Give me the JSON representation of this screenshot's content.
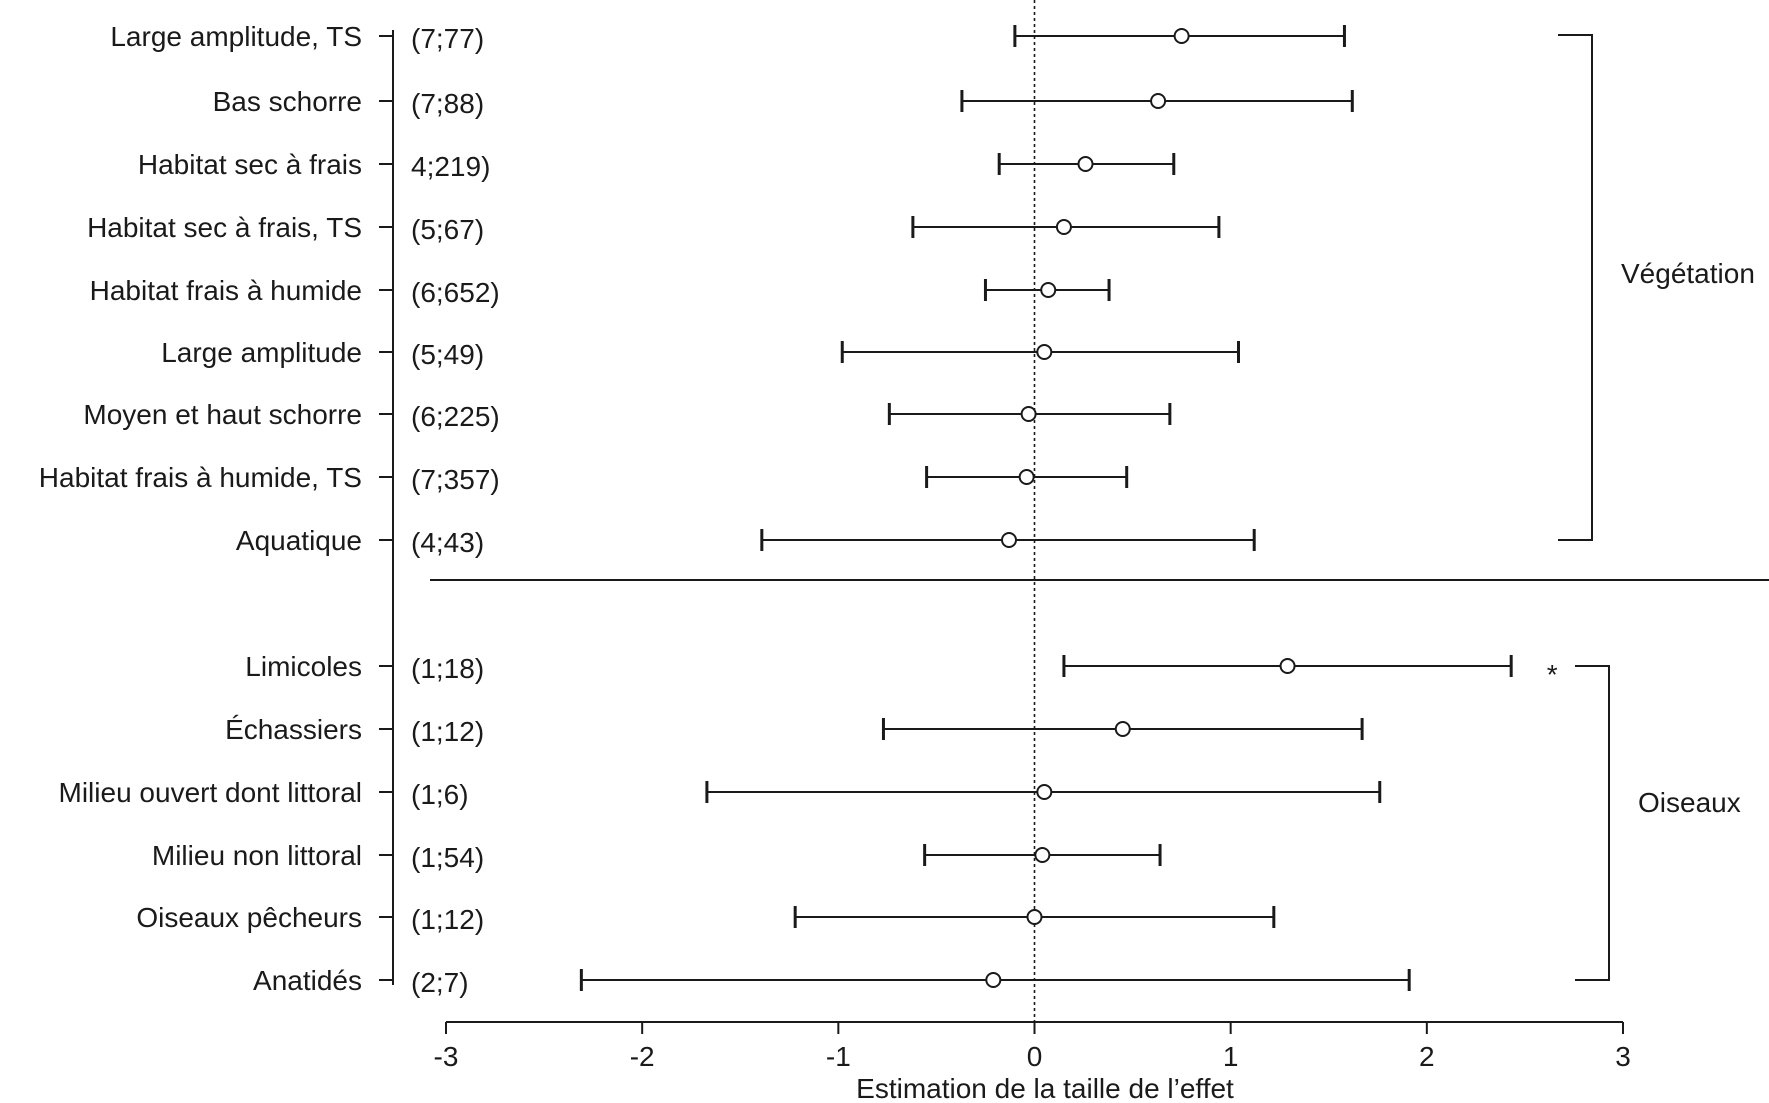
{
  "chart_data": {
    "type": "forest",
    "xlabel": "Estimation de la taille de l’effet",
    "xlim": [
      -3,
      3
    ],
    "xticks": [
      -3,
      -2,
      -1,
      0,
      1,
      2,
      3
    ],
    "xtick_labels": [
      "-3",
      "-2",
      "-1",
      "0",
      "1",
      "2",
      "3"
    ],
    "reference_line": 0,
    "groups": [
      {
        "name": "Végétation",
        "rows": [
          {
            "label": "Large amplitude, TS",
            "n": "(7;77)",
            "estimate": 0.75,
            "lower": -0.1,
            "upper": 1.58
          },
          {
            "label": "Bas schorre",
            "n": "(7;88)",
            "estimate": 0.63,
            "lower": -0.37,
            "upper": 1.62
          },
          {
            "label": "Habitat sec à frais",
            "n": "4;219)",
            "estimate": 0.26,
            "lower": -0.18,
            "upper": 0.71
          },
          {
            "label": "Habitat sec à frais, TS",
            "n": "(5;67)",
            "estimate": 0.15,
            "lower": -0.62,
            "upper": 0.94
          },
          {
            "label": "Habitat frais à humide",
            "n": "(6;652)",
            "estimate": 0.07,
            "lower": -0.25,
            "upper": 0.38
          },
          {
            "label": "Large amplitude",
            "n": "(5;49)",
            "estimate": 0.05,
            "lower": -0.98,
            "upper": 1.04
          },
          {
            "label": "Moyen et haut schorre",
            "n": "(6;225)",
            "estimate": -0.03,
            "lower": -0.74,
            "upper": 0.69
          },
          {
            "label": "Habitat frais à humide, TS",
            "n": "(7;357)",
            "estimate": -0.04,
            "lower": -0.55,
            "upper": 0.47
          },
          {
            "label": "Aquatique",
            "n": "(4;43)",
            "estimate": -0.13,
            "lower": -1.39,
            "upper": 1.12
          }
        ]
      },
      {
        "name": "Oiseaux",
        "rows": [
          {
            "label": "Limicoles",
            "n": "(1;18)",
            "estimate": 1.29,
            "lower": 0.15,
            "upper": 2.43,
            "significance": "*"
          },
          {
            "label": "Échassiers",
            "n": "(1;12)",
            "estimate": 0.45,
            "lower": -0.77,
            "upper": 1.67
          },
          {
            "label": "Milieu ouvert dont littoral",
            "n": "(1;6)",
            "estimate": 0.05,
            "lower": -1.67,
            "upper": 1.76
          },
          {
            "label": "Milieu non littoral",
            "n": "(1;54)",
            "estimate": 0.04,
            "lower": -0.56,
            "upper": 0.64
          },
          {
            "label": "Oiseaux pêcheurs",
            "n": "(1;12)",
            "estimate": 0.0,
            "lower": -1.22,
            "upper": 1.22
          },
          {
            "label": "Anatidés",
            "n": "(2;7)",
            "estimate": -0.21,
            "lower": -2.31,
            "upper": 1.91
          }
        ]
      }
    ]
  }
}
